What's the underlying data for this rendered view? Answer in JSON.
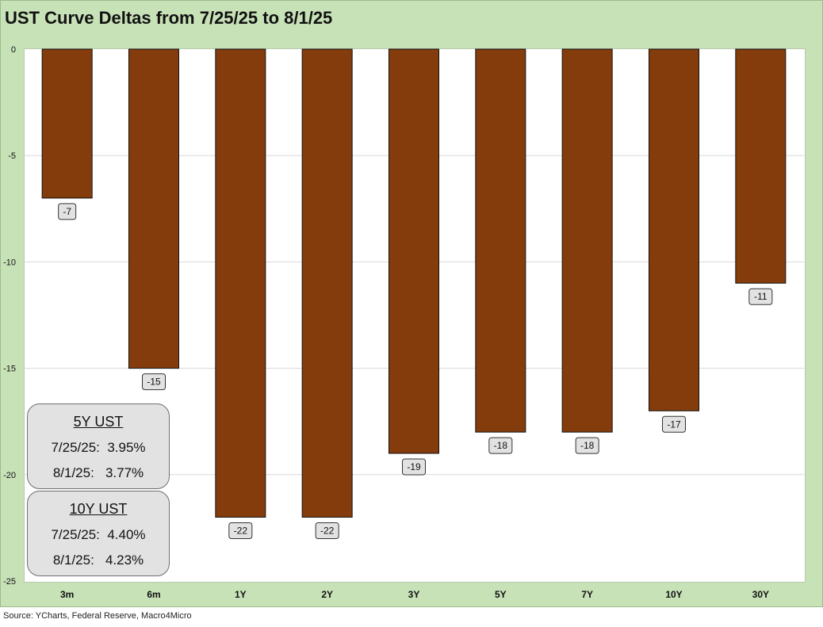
{
  "title": "UST Curve Deltas from 7/25/25 to 8/1/25",
  "source": "Source: YCharts, Federal Reserve, Macro4Micro",
  "info_boxes": [
    {
      "header": "5Y UST",
      "rows": [
        "7/25/25:  3.95%",
        "8/1/25:   3.77%"
      ]
    },
    {
      "header": "10Y UST",
      "rows": [
        "7/25/25:  4.40%",
        "8/1/25:   4.23%"
      ]
    }
  ],
  "chart_data": {
    "type": "bar",
    "categories": [
      "3m",
      "6m",
      "1Y",
      "2Y",
      "3Y",
      "5Y",
      "7Y",
      "10Y",
      "30Y"
    ],
    "values": [
      -7,
      -15,
      -22,
      -22,
      -19,
      -18,
      -18,
      -17,
      -11
    ],
    "ylim": [
      -25,
      0
    ],
    "yticks": [
      0,
      -5,
      -10,
      -15,
      -20,
      -25
    ],
    "grid": true,
    "bar_color": "#843c0c",
    "label_box_color": "#e2e2e2"
  }
}
